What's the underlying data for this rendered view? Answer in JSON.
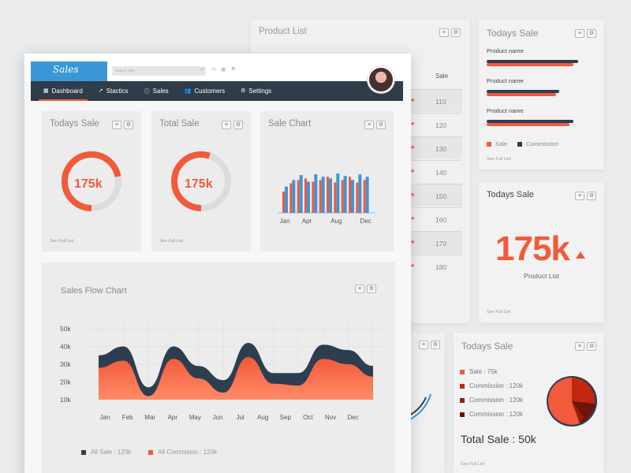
{
  "colors": {
    "accent": "#f15a3a",
    "dark": "#2c3e50",
    "nav": "#2f3c49",
    "logo_bg": "#3a97d8",
    "bar_blue": "#3a97d8"
  },
  "product_list": {
    "title": "Product List",
    "column_header": "Sale",
    "rows": [
      "110",
      "120",
      "130",
      "140",
      "150",
      "160",
      "170",
      "180"
    ]
  },
  "todays_sale_bars": {
    "title": "Todays Sale",
    "items": [
      {
        "label": "Product name",
        "sale": 0.8,
        "commission": 0.84
      },
      {
        "label": "Product name",
        "sale": 0.64,
        "commission": 0.67
      },
      {
        "label": "Product name",
        "sale": 0.76,
        "commission": 0.8
      }
    ],
    "legend": {
      "sale": "Sale",
      "commission": "Commission"
    },
    "see_full": "See Full List"
  },
  "todays_sale_big": {
    "title": "Todays Sale",
    "value": "175k",
    "caption": "Product List",
    "see_full": "See Full List"
  },
  "todays_sale_pie": {
    "title": "Todays Sale",
    "legend": [
      {
        "label": "Sale : 75k",
        "color": "#f15a3a"
      },
      {
        "label": "Commission : 120k",
        "color": "#c3270e"
      },
      {
        "label": "Commission : 120k",
        "color": "#9b1c0a"
      },
      {
        "label": "Commission : 120k",
        "color": "#6e1408"
      }
    ],
    "total": "Total Sale : 50k",
    "see_full": "See Full List"
  },
  "app": {
    "logo": "Sales",
    "search_placeholder": "Search Here",
    "nav": [
      {
        "label": "Dashboard",
        "icon": "grid-icon",
        "active": true
      },
      {
        "label": "Stactics",
        "icon": "trend-icon",
        "active": false
      },
      {
        "label": "Sales",
        "icon": "info-icon",
        "active": false
      },
      {
        "label": "Customers",
        "icon": "users-icon",
        "active": false
      },
      {
        "label": "Settings",
        "icon": "gear-icon",
        "active": false
      }
    ]
  },
  "cards": {
    "todays_sale": {
      "title": "Todays Sale",
      "value": "175k",
      "fraction": 0.72,
      "see_full": "See Full List"
    },
    "total_sale": {
      "title": "Total Sale",
      "value": "175k",
      "fraction": 0.55,
      "see_full": "See Full List"
    },
    "sale_chart": {
      "title": "Sale Chart"
    }
  },
  "chart_data": [
    {
      "type": "bar",
      "title": "Sale Chart",
      "categories": [
        "Jan",
        "Feb",
        "Mar",
        "Apr",
        "May",
        "Jun",
        "Jul",
        "Aug",
        "Sep",
        "Oct",
        "Nov",
        "Dec"
      ],
      "tick_labels": [
        "Jan",
        "Apr",
        "Aug",
        "Dec"
      ],
      "series": [
        {
          "values": [
            26,
            36,
            40,
            42,
            38,
            40,
            44,
            37,
            40,
            44,
            37,
            40
          ]
        },
        {
          "values": [
            32,
            40,
            46,
            38,
            47,
            44,
            42,
            48,
            45,
            40,
            47,
            44
          ]
        }
      ]
    },
    {
      "type": "area",
      "title": "Sales Flow Chart",
      "x": [
        "Jan",
        "Feb",
        "Mar",
        "Apr",
        "May",
        "Jun",
        "Jul",
        "Aug",
        "Sep",
        "Oct",
        "Nov",
        "Dec"
      ],
      "yticks": [
        "50k",
        "40k",
        "30k",
        "20k",
        "10k"
      ],
      "ylim": [
        10,
        50
      ],
      "series": [
        {
          "name": "All Sale : 120k",
          "values": [
            35,
            40,
            17,
            40,
            29,
            21,
            42,
            25,
            25,
            41,
            38,
            29
          ]
        },
        {
          "name": "All Commision : 120k",
          "values": [
            28,
            32,
            12,
            33,
            22,
            14,
            34,
            19,
            18,
            33,
            30,
            23
          ]
        }
      ]
    }
  ]
}
